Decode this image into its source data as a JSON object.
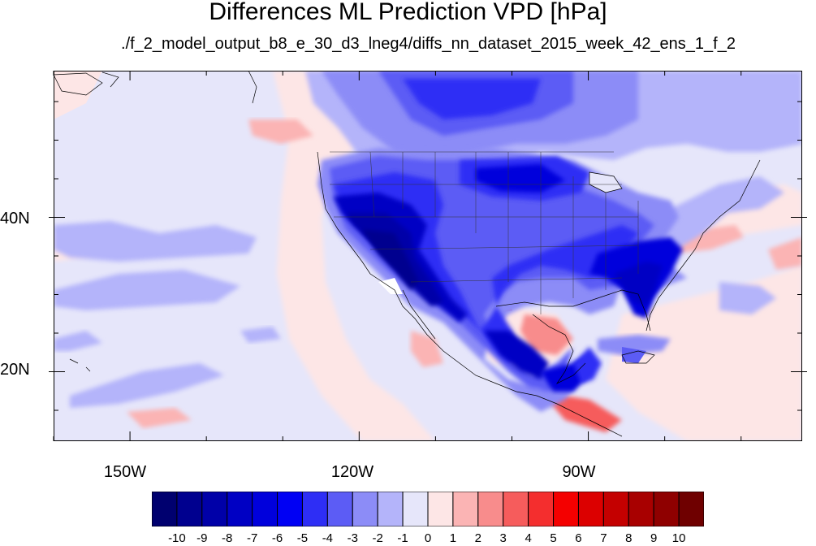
{
  "title": "Differences ML Prediction VPD [hPa]",
  "subtitle": "./f_2_model_output_b8_e_30_d3_lneg4/diffs_nn_dataset_2015_week_42_ens_1_f_2",
  "map": {
    "projection": "cylindrical equidistant",
    "lon_range": [
      -160,
      -62
    ],
    "lat_range": [
      11,
      59
    ],
    "lat_ticks": [
      {
        "value": 40,
        "label": "40N"
      },
      {
        "value": 20,
        "label": "20N"
      }
    ],
    "lon_ticks": [
      {
        "value": -150,
        "label": "150W"
      },
      {
        "value": -120,
        "label": "120W"
      },
      {
        "value": -90,
        "label": "90W"
      }
    ],
    "ocean_background_color": "#e6e6fa"
  },
  "colorbar": {
    "labels": [
      "-10",
      "-9",
      "-8",
      "-7",
      "-6",
      "-5",
      "-4",
      "-3",
      "-2",
      "-1",
      "0",
      "1",
      "2",
      "3",
      "4",
      "5",
      "6",
      "7",
      "8",
      "9",
      "10"
    ],
    "colors": [
      "#00006f",
      "#00008f",
      "#0000a8",
      "#0000c4",
      "#0000dc",
      "#0000f4",
      "#2e2ef5",
      "#5c5cf5",
      "#8c8cf7",
      "#b4b4fa",
      "#e6e6fa",
      "#fde6e6",
      "#fbb4b4",
      "#f88c8c",
      "#f65c5c",
      "#f42e2e",
      "#f40000",
      "#dc0000",
      "#c40000",
      "#a80000",
      "#8f0000",
      "#6f0000"
    ]
  }
}
